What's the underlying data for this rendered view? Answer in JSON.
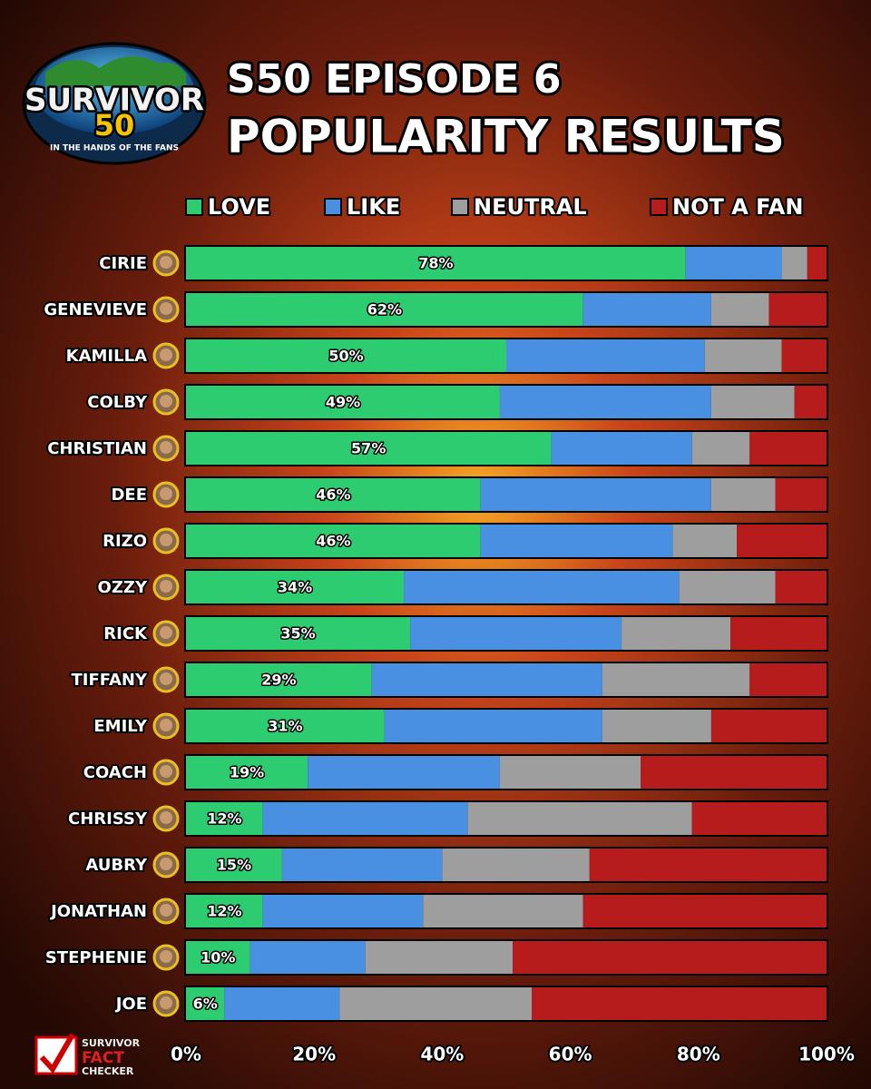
{
  "logo": {
    "title": "SURVIVOR",
    "number": "50",
    "tagline": "IN THE HANDS OF THE FANS"
  },
  "footer": {
    "line1": "SURVIVOR",
    "line2": "FACT",
    "line3": "CHECKER"
  },
  "chart_data": {
    "type": "stacked_bar_horizontal",
    "title": "S50 EPISODE 6",
    "subtitle": "POPULARITY RESULTS",
    "categories": [
      "CIRIE",
      "GENEVIEVE",
      "KAMILLA",
      "COLBY",
      "CHRISTIAN",
      "DEE",
      "RIZO",
      "OZZY",
      "RICK",
      "TIFFANY",
      "EMILY",
      "COACH",
      "CHRISSY",
      "AUBRY",
      "JONATHAN",
      "STEPHENIE",
      "JOE"
    ],
    "series": [
      {
        "name": "LOVE",
        "color": "#2ecc71",
        "values": [
          78,
          62,
          50,
          49,
          57,
          46,
          46,
          34,
          35,
          29,
          31,
          19,
          12,
          15,
          12,
          10,
          6
        ],
        "value_labels": [
          "78%",
          "62%",
          "50%",
          "49%",
          "57%",
          "46%",
          "46%",
          "34%",
          "35%",
          "29%",
          "31%",
          "19%",
          "12%",
          "15%",
          "12%",
          "10%",
          "6%"
        ]
      },
      {
        "name": "LIKE",
        "color": "#4a90e2",
        "values": [
          15,
          20,
          31,
          33,
          22,
          36,
          30,
          43,
          33,
          36,
          34,
          30,
          32,
          25,
          25,
          18,
          18
        ]
      },
      {
        "name": "NEUTRAL",
        "color": "#9e9e9e",
        "values": [
          4,
          9,
          12,
          13,
          9,
          10,
          10,
          15,
          17,
          23,
          17,
          22,
          35,
          23,
          25,
          23,
          30
        ]
      },
      {
        "name": "NOT A FAN",
        "color": "#b71c1c",
        "values": [
          3,
          9,
          7,
          5,
          12,
          8,
          14,
          8,
          15,
          12,
          18,
          29,
          21,
          37,
          38,
          49,
          46
        ]
      }
    ],
    "xlim": [
      0,
      100
    ],
    "xticks": [
      {
        "value": 0,
        "label": "0%"
      },
      {
        "value": 20,
        "label": "20%"
      },
      {
        "value": 40,
        "label": "40%"
      },
      {
        "value": 60,
        "label": "60%"
      },
      {
        "value": 80,
        "label": "80%"
      },
      {
        "value": 100,
        "label": "100%"
      }
    ]
  }
}
